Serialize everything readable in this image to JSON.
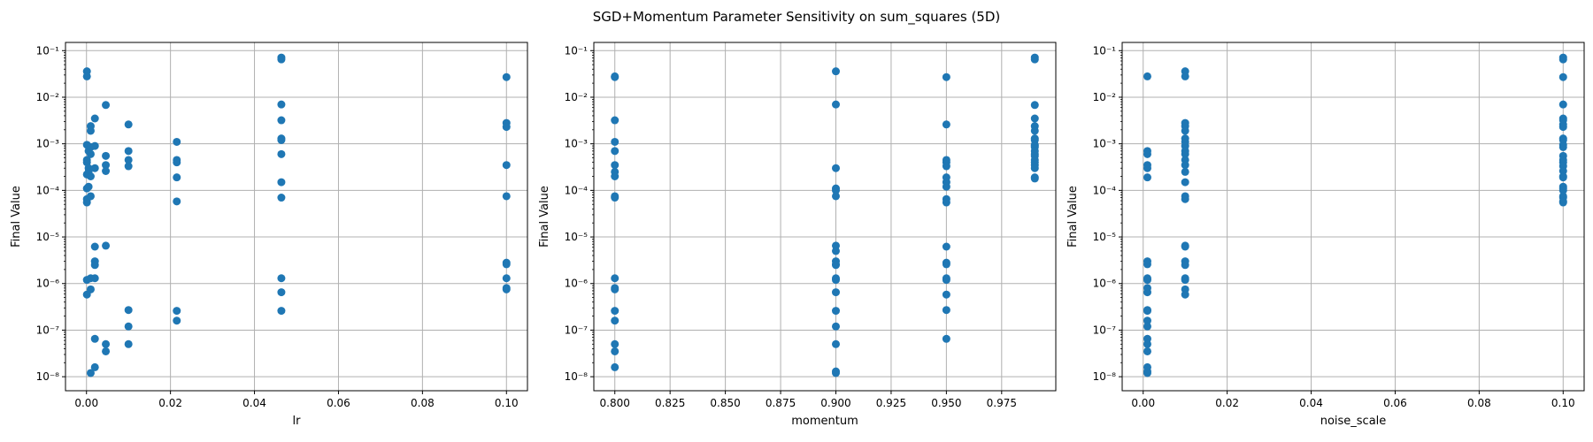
{
  "figure": {
    "suptitle": "SGD+Momentum Parameter Sensitivity on sum_squares (5D)",
    "colors": {
      "marker": "#1f77b4",
      "grid": "#b0b0b0",
      "axes": "#000000"
    }
  },
  "chart_data": [
    {
      "type": "scatter",
      "xlabel": "lr",
      "ylabel": "Final Value",
      "yscale": "log",
      "grid": true,
      "xlim": [
        -0.005,
        0.105
      ],
      "ylim": [
        5e-09,
        0.15
      ],
      "xticks": [
        0.0,
        0.02,
        0.04,
        0.06,
        0.08,
        0.1
      ],
      "xtick_labels": [
        "0.00",
        "0.02",
        "0.04",
        "0.06",
        "0.08",
        "0.10"
      ],
      "points": [
        [
          0.0001,
          0.036
        ],
        [
          0.0001,
          0.028
        ],
        [
          0.0001,
          0.00095
        ],
        [
          0.0001,
          0.00045
        ],
        [
          0.0001,
          0.0004
        ],
        [
          0.0001,
          0.00022
        ],
        [
          0.0001,
          0.00011
        ],
        [
          0.0001,
          6.5e-05
        ],
        [
          0.0001,
          5.5e-05
        ],
        [
          0.0001,
          1.2e-06
        ],
        [
          0.0001,
          5.8e-07
        ],
        [
          0.0005,
          0.0007
        ],
        [
          0.0005,
          0.0003
        ],
        [
          0.0005,
          0.00025
        ],
        [
          0.0005,
          0.00012
        ],
        [
          0.001,
          0.0024
        ],
        [
          0.001,
          0.0019
        ],
        [
          0.001,
          0.00085
        ],
        [
          0.001,
          0.0006
        ],
        [
          0.001,
          0.0002
        ],
        [
          0.001,
          7.5e-05
        ],
        [
          0.001,
          1.3e-06
        ],
        [
          0.001,
          7.5e-07
        ],
        [
          0.001,
          1.2e-08
        ],
        [
          0.002,
          0.0035
        ],
        [
          0.002,
          0.0009
        ],
        [
          0.002,
          0.0003
        ],
        [
          0.002,
          6.2e-06
        ],
        [
          0.002,
          3e-06
        ],
        [
          0.002,
          2.5e-06
        ],
        [
          0.002,
          1.3e-06
        ],
        [
          0.002,
          6.5e-08
        ],
        [
          0.002,
          1.6e-08
        ],
        [
          0.0046,
          0.0068
        ],
        [
          0.0046,
          0.00055
        ],
        [
          0.0046,
          0.00035
        ],
        [
          0.0046,
          0.00026
        ],
        [
          0.0046,
          6.5e-06
        ],
        [
          0.0046,
          5e-08
        ],
        [
          0.0046,
          3.5e-08
        ],
        [
          0.01,
          0.0026
        ],
        [
          0.01,
          0.0007
        ],
        [
          0.01,
          0.00045
        ],
        [
          0.01,
          0.00033
        ],
        [
          0.01,
          2.7e-07
        ],
        [
          0.01,
          1.2e-07
        ],
        [
          0.01,
          5e-08
        ],
        [
          0.0215,
          0.0011
        ],
        [
          0.0215,
          0.00045
        ],
        [
          0.0215,
          0.0004
        ],
        [
          0.0215,
          0.00019
        ],
        [
          0.0215,
          5.8e-05
        ],
        [
          0.0215,
          2.6e-07
        ],
        [
          0.0215,
          1.6e-07
        ],
        [
          0.0464,
          0.071
        ],
        [
          0.0464,
          0.065
        ],
        [
          0.0464,
          0.007
        ],
        [
          0.0464,
          0.0032
        ],
        [
          0.0464,
          0.0013
        ],
        [
          0.0464,
          0.0012
        ],
        [
          0.0464,
          0.0006
        ],
        [
          0.0464,
          0.00015
        ],
        [
          0.0464,
          7e-05
        ],
        [
          0.0464,
          1.3e-06
        ],
        [
          0.0464,
          6.5e-07
        ],
        [
          0.0464,
          2.6e-07
        ],
        [
          0.1,
          0.027
        ],
        [
          0.1,
          0.0028
        ],
        [
          0.1,
          0.0023
        ],
        [
          0.1,
          0.00035
        ],
        [
          0.1,
          7.5e-05
        ],
        [
          0.1,
          2.8e-06
        ],
        [
          0.1,
          2.6e-06
        ],
        [
          0.1,
          1.3e-06
        ],
        [
          0.1,
          8e-07
        ],
        [
          0.1,
          7.5e-07
        ]
      ]
    },
    {
      "type": "scatter",
      "xlabel": "momentum",
      "ylabel": "Final Value",
      "yscale": "log",
      "grid": true,
      "xlim": [
        0.7905,
        0.9995
      ],
      "ylim": [
        5e-09,
        0.15
      ],
      "xticks": [
        0.8,
        0.825,
        0.85,
        0.875,
        0.9,
        0.925,
        0.95,
        0.975
      ],
      "xtick_labels": [
        "0.800",
        "0.825",
        "0.850",
        "0.875",
        "0.900",
        "0.925",
        "0.950",
        "0.975"
      ],
      "points": [
        [
          0.8,
          0.028
        ],
        [
          0.8,
          0.027
        ],
        [
          0.8,
          0.0032
        ],
        [
          0.8,
          0.0011
        ],
        [
          0.8,
          0.0007
        ],
        [
          0.8,
          0.00035
        ],
        [
          0.8,
          0.00025
        ],
        [
          0.8,
          0.0002
        ],
        [
          0.8,
          7.5e-05
        ],
        [
          0.8,
          7e-05
        ],
        [
          0.8,
          1.3e-06
        ],
        [
          0.8,
          8e-07
        ],
        [
          0.8,
          7.5e-07
        ],
        [
          0.8,
          2.6e-07
        ],
        [
          0.8,
          1.6e-07
        ],
        [
          0.8,
          5e-08
        ],
        [
          0.8,
          3.5e-08
        ],
        [
          0.8,
          1.6e-08
        ],
        [
          0.9,
          0.036
        ],
        [
          0.9,
          0.007
        ],
        [
          0.9,
          0.0003
        ],
        [
          0.9,
          0.00011
        ],
        [
          0.9,
          0.0001
        ],
        [
          0.9,
          7.5e-05
        ],
        [
          0.9,
          6.5e-06
        ],
        [
          0.9,
          5e-06
        ],
        [
          0.9,
          3e-06
        ],
        [
          0.9,
          2.6e-06
        ],
        [
          0.9,
          2.5e-06
        ],
        [
          0.9,
          1.3e-06
        ],
        [
          0.9,
          1.2e-06
        ],
        [
          0.9,
          6.5e-07
        ],
        [
          0.9,
          2.6e-07
        ],
        [
          0.9,
          1.2e-07
        ],
        [
          0.9,
          5e-08
        ],
        [
          0.9,
          1.3e-08
        ],
        [
          0.9,
          1.2e-08
        ],
        [
          0.95,
          0.027
        ],
        [
          0.95,
          0.0026
        ],
        [
          0.95,
          0.00045
        ],
        [
          0.95,
          0.0004
        ],
        [
          0.95,
          0.00033
        ],
        [
          0.95,
          0.00019
        ],
        [
          0.95,
          0.00015
        ],
        [
          0.95,
          0.00012
        ],
        [
          0.95,
          6.5e-05
        ],
        [
          0.95,
          5.5e-05
        ],
        [
          0.95,
          6.2e-06
        ],
        [
          0.95,
          2.8e-06
        ],
        [
          0.95,
          2.6e-06
        ],
        [
          0.95,
          1.3e-06
        ],
        [
          0.95,
          1.2e-06
        ],
        [
          0.95,
          5.8e-07
        ],
        [
          0.95,
          2.7e-07
        ],
        [
          0.95,
          6.5e-08
        ],
        [
          0.99,
          0.071
        ],
        [
          0.99,
          0.065
        ],
        [
          0.99,
          0.0068
        ],
        [
          0.99,
          0.0035
        ],
        [
          0.99,
          0.0024
        ],
        [
          0.99,
          0.0019
        ],
        [
          0.99,
          0.0013
        ],
        [
          0.99,
          0.0012
        ],
        [
          0.99,
          0.00095
        ],
        [
          0.99,
          0.0009
        ],
        [
          0.99,
          0.00085
        ],
        [
          0.99,
          0.0007
        ],
        [
          0.99,
          0.0006
        ],
        [
          0.99,
          0.00055
        ],
        [
          0.99,
          0.00045
        ],
        [
          0.99,
          0.0004
        ],
        [
          0.99,
          0.00035
        ],
        [
          0.99,
          0.0003
        ],
        [
          0.99,
          0.00019
        ],
        [
          0.99,
          0.00018
        ]
      ]
    },
    {
      "type": "scatter",
      "xlabel": "noise_scale",
      "ylabel": "Final Value",
      "yscale": "log",
      "grid": true,
      "xlim": [
        -0.005,
        0.105
      ],
      "ylim": [
        5e-09,
        0.15
      ],
      "xticks": [
        0.0,
        0.02,
        0.04,
        0.06,
        0.08,
        0.1
      ],
      "xtick_labels": [
        "0.00",
        "0.02",
        "0.04",
        "0.06",
        "0.08",
        "0.10"
      ],
      "points": [
        [
          0.001,
          0.028
        ],
        [
          0.001,
          0.0007
        ],
        [
          0.001,
          0.0006
        ],
        [
          0.001,
          0.00035
        ],
        [
          0.001,
          0.0003
        ],
        [
          0.001,
          0.00019
        ],
        [
          0.001,
          3e-06
        ],
        [
          0.001,
          2.6e-06
        ],
        [
          0.001,
          1.3e-06
        ],
        [
          0.001,
          1.2e-06
        ],
        [
          0.001,
          8e-07
        ],
        [
          0.001,
          6.5e-07
        ],
        [
          0.001,
          2.7e-07
        ],
        [
          0.001,
          2.6e-07
        ],
        [
          0.001,
          1.6e-07
        ],
        [
          0.001,
          1.2e-07
        ],
        [
          0.001,
          6.5e-08
        ],
        [
          0.001,
          5e-08
        ],
        [
          0.001,
          3.5e-08
        ],
        [
          0.001,
          1.6e-08
        ],
        [
          0.001,
          1.3e-08
        ],
        [
          0.001,
          1.2e-08
        ],
        [
          0.01,
          0.036
        ],
        [
          0.01,
          0.028
        ],
        [
          0.01,
          0.0028
        ],
        [
          0.01,
          0.0024
        ],
        [
          0.01,
          0.0019
        ],
        [
          0.01,
          0.0013
        ],
        [
          0.01,
          0.0011
        ],
        [
          0.01,
          0.0009
        ],
        [
          0.01,
          0.0007
        ],
        [
          0.01,
          0.0006
        ],
        [
          0.01,
          0.00045
        ],
        [
          0.01,
          0.00035
        ],
        [
          0.01,
          0.00025
        ],
        [
          0.01,
          0.00015
        ],
        [
          0.01,
          7.5e-05
        ],
        [
          0.01,
          6.5e-05
        ],
        [
          0.01,
          6.5e-06
        ],
        [
          0.01,
          6.2e-06
        ],
        [
          0.01,
          3e-06
        ],
        [
          0.01,
          2.5e-06
        ],
        [
          0.01,
          1.3e-06
        ],
        [
          0.01,
          1.2e-06
        ],
        [
          0.01,
          7.5e-07
        ],
        [
          0.01,
          5.8e-07
        ],
        [
          0.1,
          0.071
        ],
        [
          0.1,
          0.065
        ],
        [
          0.1,
          0.027
        ],
        [
          0.1,
          0.007
        ],
        [
          0.1,
          0.0035
        ],
        [
          0.1,
          0.0032
        ],
        [
          0.1,
          0.0026
        ],
        [
          0.1,
          0.0023
        ],
        [
          0.1,
          0.0013
        ],
        [
          0.1,
          0.0012
        ],
        [
          0.1,
          0.00095
        ],
        [
          0.1,
          0.00085
        ],
        [
          0.1,
          0.00055
        ],
        [
          0.1,
          0.00045
        ],
        [
          0.1,
          0.0004
        ],
        [
          0.1,
          0.00033
        ],
        [
          0.1,
          0.00026
        ],
        [
          0.1,
          0.0002
        ],
        [
          0.1,
          0.00019
        ],
        [
          0.1,
          0.00012
        ],
        [
          0.1,
          0.00011
        ],
        [
          0.1,
          0.0001
        ],
        [
          0.1,
          7.5e-05
        ],
        [
          0.1,
          7e-05
        ],
        [
          0.1,
          5.8e-05
        ],
        [
          0.1,
          5.5e-05
        ]
      ]
    }
  ]
}
